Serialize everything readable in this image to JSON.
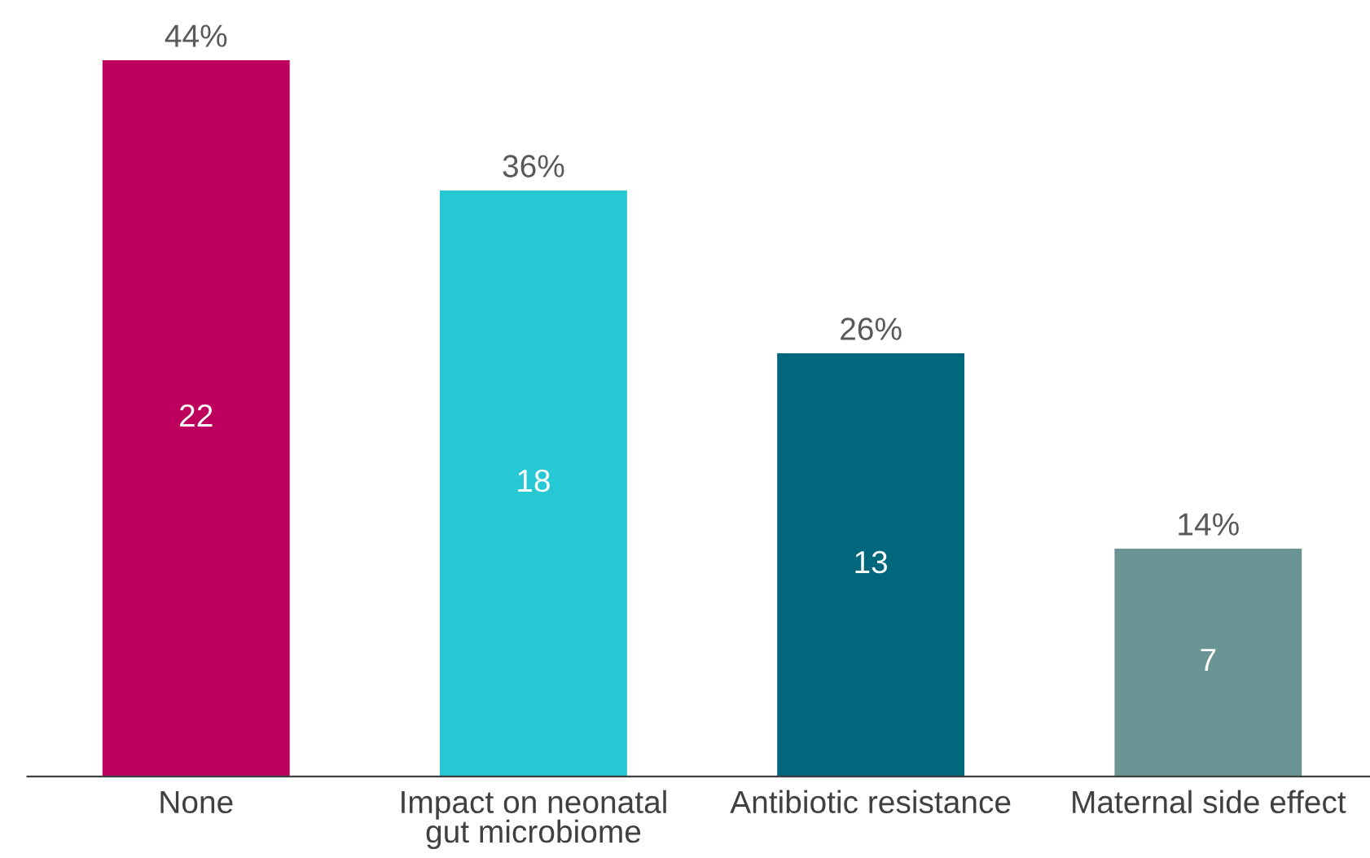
{
  "chart_data": {
    "type": "bar",
    "categories": [
      "None",
      "Impact on neonatal\ngut microbiome",
      "Antibiotic resistance",
      "Maternal side effect"
    ],
    "values": [
      44,
      36,
      26,
      14
    ],
    "colors": [
      "#bd005e",
      "#26c9d3",
      "#00677c",
      "#6b9494"
    ],
    "value_labels": [
      "44%",
      "36%",
      "26%",
      "14%"
    ],
    "annotations": [
      "22",
      "18",
      "13",
      "7"
    ],
    "grid": false,
    "legend": false
  }
}
